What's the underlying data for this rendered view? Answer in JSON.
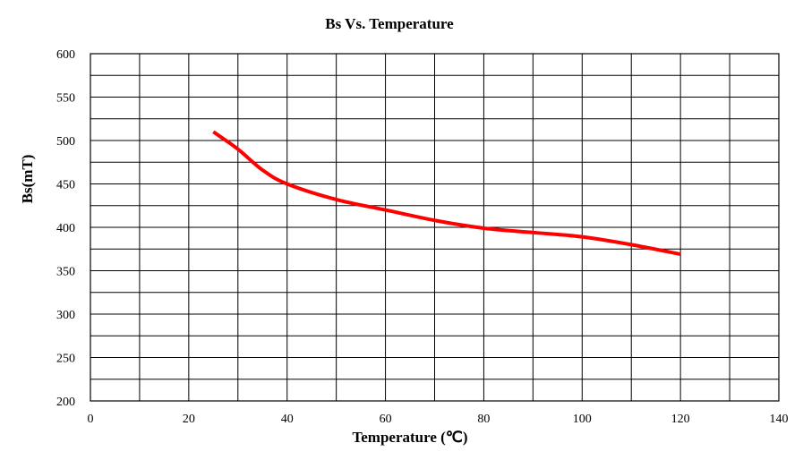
{
  "chart_data": {
    "type": "line",
    "title": "Bs Vs. Temperature",
    "xlabel": "Temperature (℃)",
    "ylabel": "Bs(mT)",
    "xlim": [
      0,
      140
    ],
    "ylim": [
      200,
      600
    ],
    "x_ticks": [
      0,
      20,
      40,
      60,
      80,
      100,
      120,
      140
    ],
    "y_ticks": [
      200,
      250,
      300,
      350,
      400,
      450,
      500,
      550,
      600
    ],
    "x_grid_step": 10,
    "y_grid_step": 25,
    "grid": true,
    "legend": "none",
    "series": [
      {
        "color": "#ff0000",
        "x": [
          25,
          30,
          35,
          40,
          50,
          60,
          70,
          80,
          90,
          100,
          110,
          120
        ],
        "y": [
          510,
          490,
          466,
          450,
          432,
          420,
          408,
          399,
          394,
          389,
          380,
          369
        ]
      }
    ]
  }
}
